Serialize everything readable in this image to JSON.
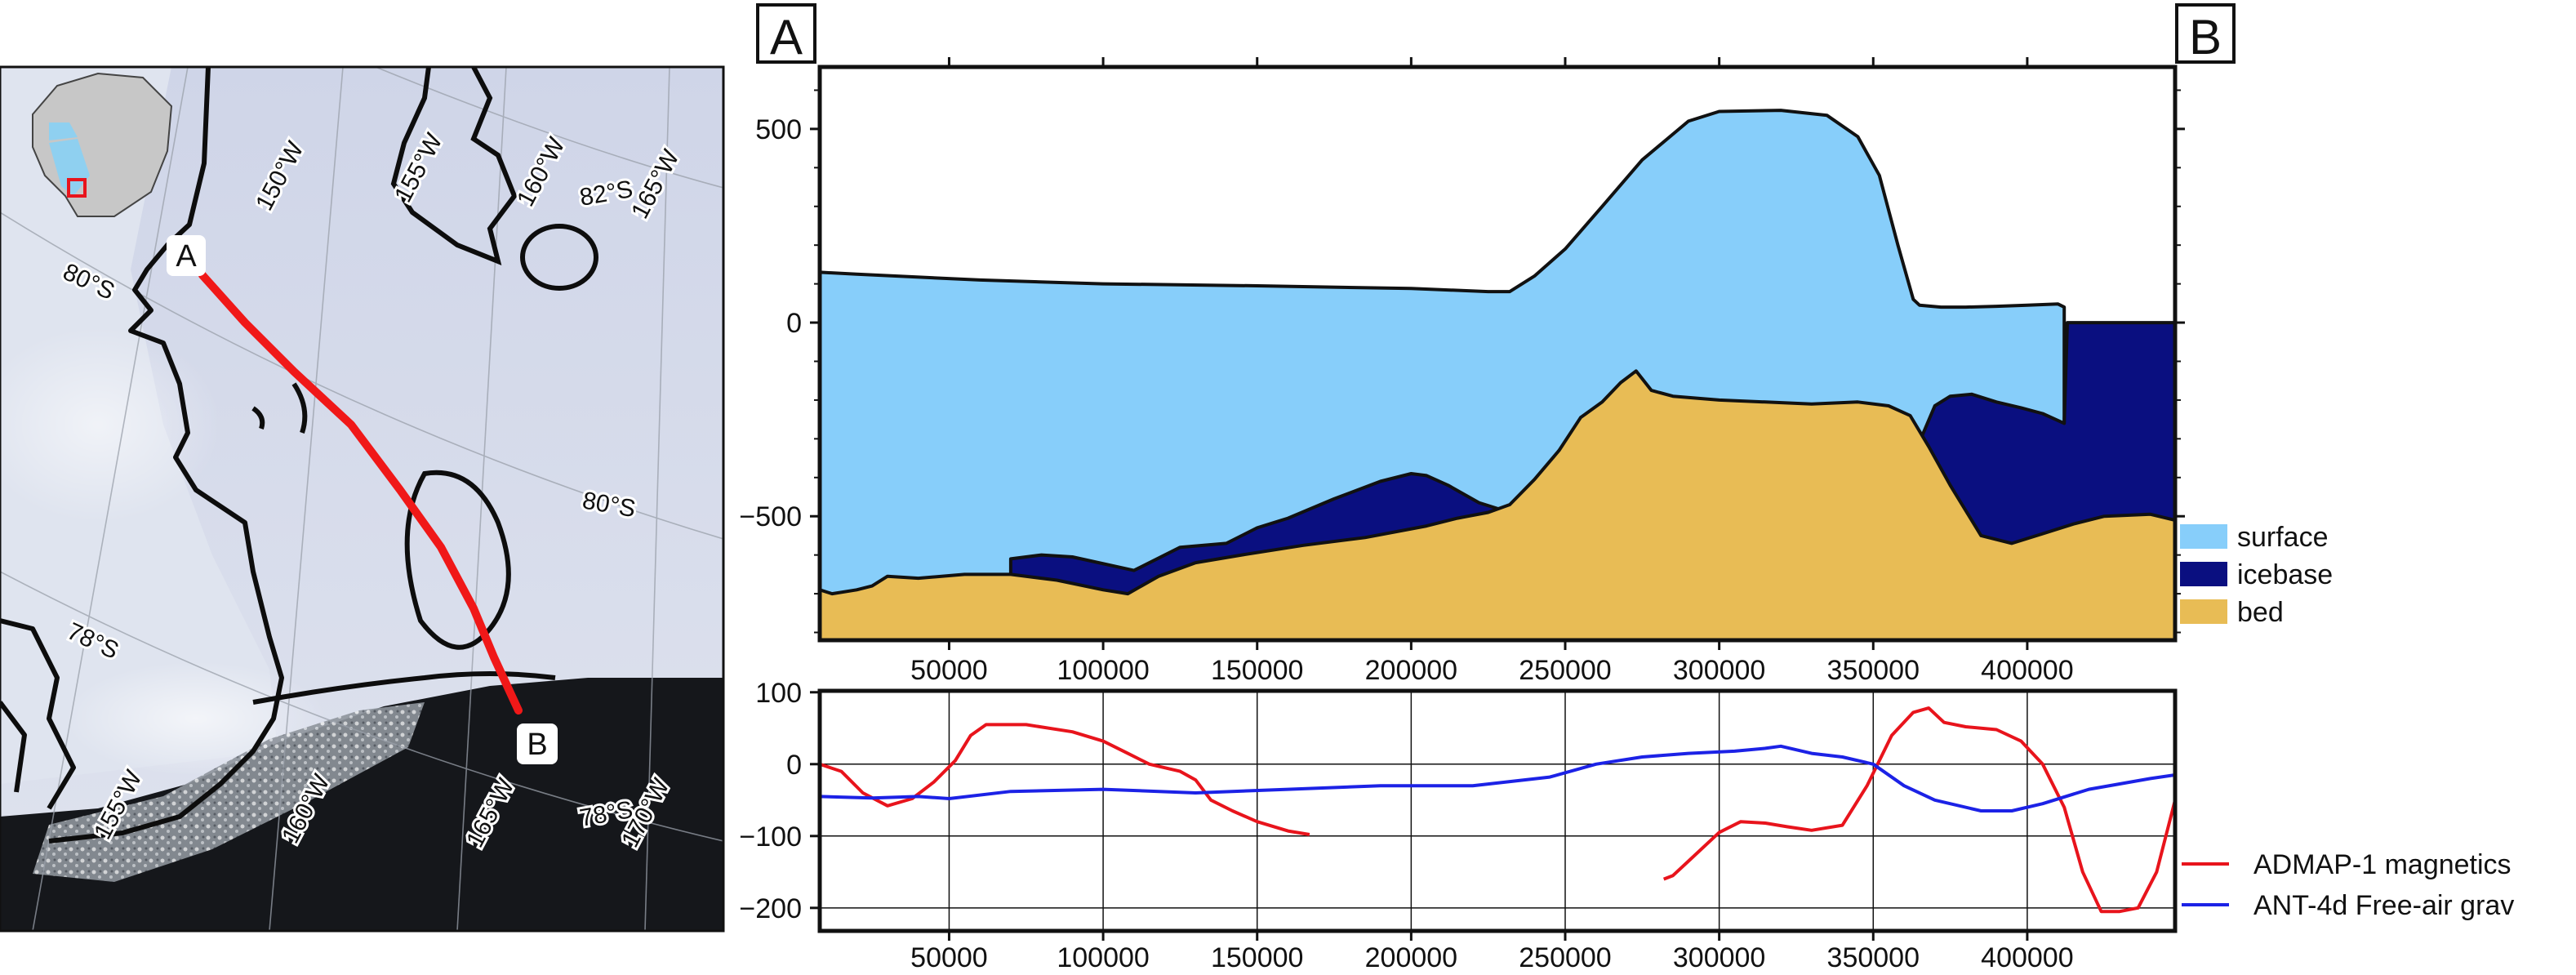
{
  "map": {
    "point_a": "A",
    "point_b": "B",
    "lon_labels": [
      "150°W",
      "155°W",
      "160°W",
      "165°W",
      "155°W",
      "160°W",
      "165°W",
      "170°W"
    ],
    "lat_labels": [
      "80°S",
      "80°S",
      "78°S",
      "82°S",
      "78°S"
    ],
    "colors": {
      "profile_line": "#f01818",
      "coast": "#111111",
      "inset_box": "#e8141c",
      "inset_land": "#c8c8c8",
      "ice_shelf": "#8fd0f0"
    }
  },
  "chart_data": [
    {
      "type": "area",
      "corner_labels": {
        "left": "A",
        "right": "B"
      },
      "xlim": [
        8000,
        448000
      ],
      "ylim": [
        -820,
        660
      ],
      "yticks": [
        500,
        0,
        -500
      ],
      "xticks": [
        50000,
        100000,
        150000,
        200000,
        250000,
        300000,
        350000,
        400000
      ],
      "legend": {
        "position": "bottom-right-outside"
      },
      "series": [
        {
          "name": "surface",
          "color": "#87cefa",
          "x": [
            8000,
            20000,
            60000,
            100000,
            150000,
            200000,
            225000,
            232000,
            240000,
            250000,
            262000,
            275000,
            290000,
            300000,
            320000,
            335000,
            345000,
            352000,
            358000,
            363000,
            365000,
            372000,
            380000,
            390000,
            400000,
            410000,
            412000
          ],
          "y": [
            130,
            125,
            110,
            100,
            95,
            88,
            80,
            80,
            120,
            190,
            300,
            420,
            520,
            545,
            548,
            535,
            480,
            380,
            200,
            60,
            45,
            40,
            40,
            42,
            45,
            48,
            40
          ]
        },
        {
          "name": "icebase",
          "color": "#0a0f80",
          "x": [
            70000,
            80000,
            90000,
            110000,
            125000,
            140000,
            150000,
            160000,
            175000,
            190000,
            200000,
            205000,
            212000,
            222000,
            232000,
            236000,
            366000,
            370000,
            375000,
            382000,
            390000,
            398000,
            405000,
            412000,
            413000,
            448000
          ],
          "y": [
            -610,
            -600,
            -605,
            -640,
            -580,
            -570,
            -530,
            -505,
            -455,
            -410,
            -390,
            -395,
            -420,
            -465,
            -490,
            -500,
            -290,
            -215,
            -190,
            -185,
            -205,
            -220,
            -235,
            -260,
            0,
            0
          ]
        },
        {
          "name": "bed",
          "color": "#e8bc55",
          "x": [
            8000,
            12000,
            20000,
            25000,
            30000,
            40000,
            55000,
            70000,
            85000,
            100000,
            108000,
            118000,
            130000,
            145000,
            165000,
            185000,
            205000,
            215000,
            225000,
            232000,
            240000,
            248000,
            255000,
            262000,
            268000,
            273000,
            278000,
            285000,
            300000,
            315000,
            330000,
            345000,
            355000,
            362000,
            368000,
            375000,
            385000,
            395000,
            405000,
            415000,
            425000,
            440000,
            448000
          ],
          "y": [
            -690,
            -700,
            -690,
            -680,
            -655,
            -660,
            -650,
            -650,
            -665,
            -690,
            -700,
            -655,
            -620,
            -600,
            -575,
            -555,
            -525,
            -505,
            -490,
            -470,
            -405,
            -330,
            -245,
            -205,
            -155,
            -125,
            -175,
            -190,
            -200,
            -205,
            -210,
            -205,
            -215,
            -240,
            -320,
            -420,
            -550,
            -570,
            -545,
            -520,
            -500,
            -495,
            -510
          ]
        }
      ]
    },
    {
      "type": "line",
      "xlim": [
        8000,
        448000
      ],
      "ylim": [
        -232,
        102
      ],
      "yticks": [
        100,
        0,
        -100,
        -200
      ],
      "xticks": [
        50000,
        100000,
        150000,
        200000,
        250000,
        300000,
        350000,
        400000
      ],
      "grid": true,
      "legend": {
        "position": "bottom-right-outside"
      },
      "series": [
        {
          "name": "ADMAP-1 magnetics",
          "color": "#e8141c",
          "segments": [
            {
              "x": [
                8000,
                15000,
                22000,
                30000,
                38000,
                45000,
                52000,
                57000,
                62000,
                75000,
                90000,
                100000,
                108000,
                115000,
                125000,
                130000,
                135000,
                142000,
                150000,
                160000,
                167000
              ],
              "y": [
                0,
                -10,
                -40,
                -58,
                -48,
                -25,
                5,
                40,
                55,
                55,
                45,
                32,
                15,
                0,
                -10,
                -22,
                -50,
                -65,
                -80,
                -93,
                -98
              ]
            },
            {
              "x": [
                282000,
                285000,
                290000,
                300000,
                307000,
                315000,
                322000,
                330000,
                340000,
                348000,
                356000,
                363000,
                368000,
                373000,
                380000,
                390000,
                398000,
                405000,
                412000,
                418000,
                424000,
                430000,
                436000,
                442000,
                448000
              ],
              "y": [
                -160,
                -155,
                -135,
                -95,
                -80,
                -82,
                -87,
                -92,
                -85,
                -30,
                40,
                72,
                78,
                58,
                52,
                48,
                32,
                0,
                -60,
                -150,
                -205,
                -205,
                -200,
                -150,
                -50
              ]
            }
          ]
        },
        {
          "name": "ANT-4d Free-air grav",
          "color": "#1c22e6",
          "segments": [
            {
              "x": [
                8000,
                25000,
                40000,
                50000,
                70000,
                100000,
                130000,
                160000,
                190000,
                220000,
                245000,
                260000,
                275000,
                290000,
                305000,
                315000,
                320000,
                330000,
                340000,
                350000,
                360000,
                370000,
                385000,
                395000,
                405000,
                420000,
                440000,
                448000
              ],
              "y": [
                -45,
                -47,
                -45,
                -48,
                -38,
                -35,
                -40,
                -35,
                -30,
                -30,
                -18,
                0,
                10,
                15,
                18,
                22,
                25,
                15,
                10,
                0,
                -30,
                -50,
                -65,
                -65,
                -55,
                -35,
                -20,
                -15
              ]
            }
          ]
        }
      ]
    }
  ]
}
